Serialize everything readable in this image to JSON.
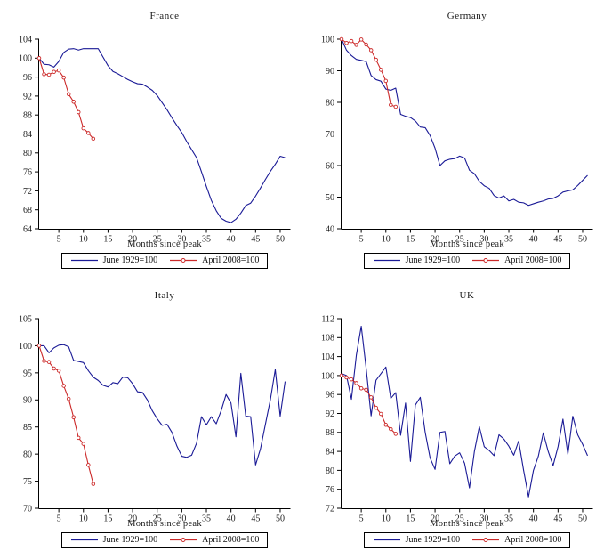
{
  "figure": {
    "xlabel": "Months since peak",
    "legend_labels": [
      "June 1929=100",
      "April 2008=100"
    ]
  },
  "colors": {
    "series_1929": "#1a1a96",
    "series_2008": "#cc2929",
    "axis": "#000000",
    "text": "#1a1a1a",
    "background": "#ffffff"
  },
  "chart_data": [
    {
      "type": "line",
      "title": "France",
      "xlabel": "Months since peak",
      "x_start": 1,
      "xlim": [
        1,
        52
      ],
      "x_ticks": [
        5,
        10,
        15,
        20,
        25,
        30,
        35,
        40,
        45,
        50
      ],
      "ylim": [
        64,
        104
      ],
      "y_ticks": [
        64,
        68,
        72,
        76,
        80,
        84,
        88,
        92,
        96,
        100,
        104
      ],
      "grid": false,
      "legend_position": "bottom",
      "series": [
        {
          "name": "June 1929=100",
          "color": "#1a1a96",
          "marker": "none",
          "values": [
            100,
            98.7,
            98.6,
            98.1,
            99.3,
            101.2,
            101.9,
            102,
            101.7,
            102,
            102,
            102,
            102,
            100.2,
            98.4,
            97.2,
            96.7,
            96.1,
            95.5,
            95,
            94.6,
            94.5,
            93.9,
            93.2,
            92.1,
            90.6,
            89.1,
            87.4,
            85.8,
            84.3,
            82.4,
            80.7,
            79,
            76,
            72.9,
            70,
            67.8,
            66.2,
            65.6,
            65.3,
            66,
            67.3,
            68.9,
            69.4,
            70.9,
            72.6,
            74.4,
            76.1,
            77.6,
            79.3,
            79
          ]
        },
        {
          "name": "April 2008=100",
          "color": "#cc2929",
          "marker": "circle",
          "values": [
            100,
            96.6,
            96.5,
            97.1,
            97.4,
            95.9,
            92.4,
            90.8,
            88.6,
            85.2,
            84.2,
            83
          ]
        }
      ]
    },
    {
      "type": "line",
      "title": "Germany",
      "xlabel": "Months since peak",
      "x_start": 1,
      "xlim": [
        1,
        52
      ],
      "x_ticks": [
        5,
        10,
        15,
        20,
        25,
        30,
        35,
        40,
        45,
        50
      ],
      "ylim": [
        40,
        100
      ],
      "y_ticks": [
        40,
        50,
        60,
        70,
        80,
        90,
        100
      ],
      "grid": false,
      "legend_position": "bottom",
      "series": [
        {
          "name": "June 1929=100",
          "color": "#1a1a96",
          "marker": "none",
          "values": [
            100,
            96.5,
            94.8,
            93.6,
            93.3,
            92.9,
            88.5,
            87.2,
            86.7,
            84.2,
            83.8,
            84.5,
            76.2,
            75.6,
            75.2,
            74.1,
            72.2,
            72,
            69.5,
            65.5,
            60,
            61.5,
            62,
            62.2,
            63,
            62.4,
            58.5,
            57.4,
            55,
            53.6,
            52.8,
            50.5,
            49.7,
            50.4,
            48.8,
            49.3,
            48.4,
            48.2,
            47.4,
            47.9,
            48.4,
            48.8,
            49.4,
            49.6,
            50.4,
            51.6,
            52,
            52.3,
            53.7,
            55.3,
            56.9
          ]
        },
        {
          "name": "April 2008=100",
          "color": "#cc2929",
          "marker": "circle",
          "values": [
            100,
            98.8,
            99.4,
            98.2,
            99.9,
            98.3,
            96.5,
            93.5,
            90.3,
            86.8,
            79.2,
            78.6
          ]
        }
      ]
    },
    {
      "type": "line",
      "title": "Italy",
      "xlabel": "Months since peak",
      "x_start": 1,
      "xlim": [
        1,
        52
      ],
      "x_ticks": [
        5,
        10,
        15,
        20,
        25,
        30,
        35,
        40,
        45,
        50
      ],
      "ylim": [
        70,
        105
      ],
      "y_ticks": [
        70,
        75,
        80,
        85,
        90,
        95,
        100,
        105
      ],
      "grid": false,
      "legend_position": "bottom",
      "series": [
        {
          "name": "June 1929=100",
          "color": "#1a1a96",
          "marker": "none",
          "values": [
            100,
            100,
            98.7,
            99.6,
            100.1,
            100.2,
            99.8,
            97.3,
            97.1,
            96.9,
            95.4,
            94.2,
            93.6,
            92.7,
            92.4,
            93.2,
            93,
            94.2,
            94.1,
            93,
            91.5,
            91.4,
            90,
            88,
            86.5,
            85.3,
            85.5,
            84,
            81.5,
            79.6,
            79.4,
            79.8,
            82,
            86.9,
            85.4,
            86.9,
            85.6,
            88,
            91,
            89.4,
            83.2,
            94.9,
            87,
            86.9,
            78,
            81,
            85.5,
            90,
            95.6,
            87,
            93.4
          ]
        },
        {
          "name": "April 2008=100",
          "color": "#cc2929",
          "marker": "circle",
          "values": [
            100,
            97.2,
            97,
            95.8,
            95.4,
            92.6,
            90.2,
            86.8,
            83,
            81.9,
            78,
            74.5
          ]
        }
      ]
    },
    {
      "type": "line",
      "title": "UK",
      "xlabel": "Months since peak",
      "x_start": 1,
      "xlim": [
        1,
        52
      ],
      "x_ticks": [
        5,
        10,
        15,
        20,
        25,
        30,
        35,
        40,
        45,
        50
      ],
      "ylim": [
        72,
        112
      ],
      "y_ticks": [
        72,
        76,
        80,
        84,
        88,
        92,
        96,
        100,
        104,
        108,
        112
      ],
      "grid": false,
      "legend_position": "bottom",
      "series": [
        {
          "name": "June 1929=100",
          "color": "#1a1a96",
          "marker": "none",
          "values": [
            100.4,
            100,
            95,
            104.3,
            110.4,
            101.5,
            91.5,
            99,
            100.4,
            101.8,
            95.2,
            96.4,
            87.4,
            94.2,
            81.9,
            93.8,
            95.4,
            88,
            82.6,
            80.2,
            88,
            88.2,
            81.4,
            83,
            83.7,
            81.5,
            76.3,
            84,
            89.2,
            85,
            84.2,
            83.1,
            87.5,
            86.6,
            85.1,
            83.2,
            86.2,
            80,
            74.4,
            80,
            83,
            87.9,
            84,
            81,
            85,
            90.8,
            83.4,
            91.4,
            87.5,
            85.5,
            83.1
          ]
        },
        {
          "name": "April 2008=100",
          "color": "#cc2929",
          "marker": "circle",
          "values": [
            100,
            99.6,
            99.2,
            98.4,
            97.3,
            97,
            95.4,
            93.2,
            91.9,
            89.6,
            88.7,
            87.7
          ]
        }
      ]
    }
  ]
}
